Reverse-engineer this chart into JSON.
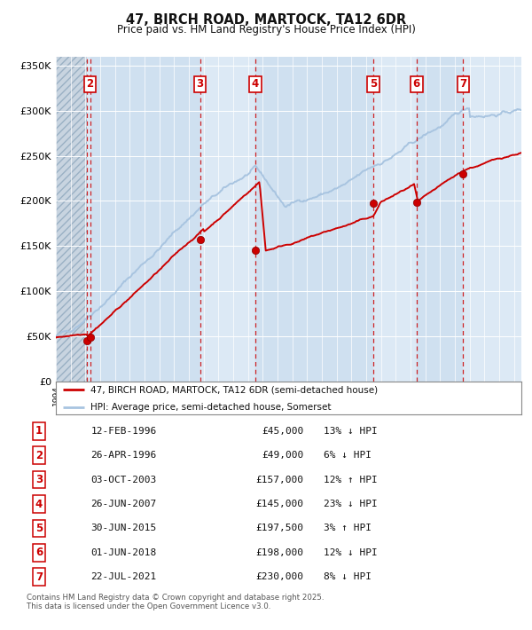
{
  "title": "47, BIRCH ROAD, MARTOCK, TA12 6DR",
  "subtitle": "Price paid vs. HM Land Registry's House Price Index (HPI)",
  "legend_line1": "47, BIRCH ROAD, MARTOCK, TA12 6DR (semi-detached house)",
  "legend_line2": "HPI: Average price, semi-detached house, Somerset",
  "footer": "Contains HM Land Registry data © Crown copyright and database right 2025.\nThis data is licensed under the Open Government Licence v3.0.",
  "transactions": [
    {
      "num": 1,
      "date": "12-FEB-1996",
      "year": 1996.12,
      "price": 45000,
      "pct": "13%",
      "dir": "↓"
    },
    {
      "num": 2,
      "date": "26-APR-1996",
      "year": 1996.32,
      "price": 49000,
      "pct": "6%",
      "dir": "↓"
    },
    {
      "num": 3,
      "date": "03-OCT-2003",
      "year": 2003.75,
      "price": 157000,
      "pct": "12%",
      "dir": "↑"
    },
    {
      "num": 4,
      "date": "26-JUN-2007",
      "year": 2007.49,
      "price": 145000,
      "pct": "23%",
      "dir": "↓"
    },
    {
      "num": 5,
      "date": "30-JUN-2015",
      "year": 2015.49,
      "price": 197500,
      "pct": "3%",
      "dir": "↑"
    },
    {
      "num": 6,
      "date": "01-JUN-2018",
      "year": 2018.41,
      "price": 198000,
      "pct": "12%",
      "dir": "↓"
    },
    {
      "num": 7,
      "date": "22-JUL-2021",
      "year": 2021.55,
      "price": 230000,
      "pct": "8%",
      "dir": "↓"
    }
  ],
  "hpi_color": "#a8c4e0",
  "price_color": "#cc0000",
  "vline_color": "#cc0000",
  "background_color": "#dce9f5",
  "ylim": [
    0,
    360000
  ],
  "xlim_start": 1994.0,
  "xlim_end": 2025.5,
  "yticks": [
    0,
    50000,
    100000,
    150000,
    200000,
    250000,
    300000,
    350000
  ],
  "ylabel_fmt": [
    "£0",
    "£50K",
    "£100K",
    "£150K",
    "£200K",
    "£250K",
    "£300K",
    "£350K"
  ]
}
